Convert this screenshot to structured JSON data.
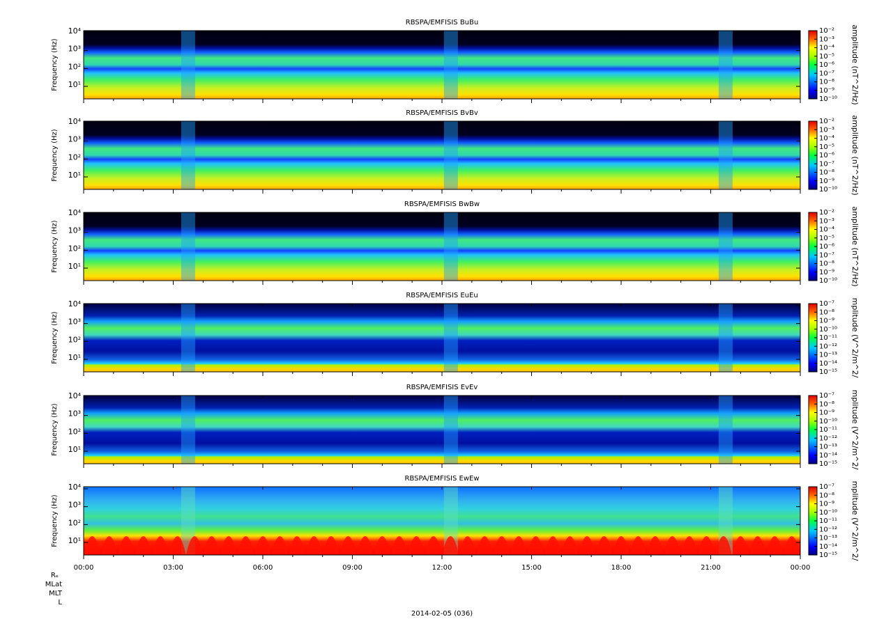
{
  "chart_data": [
    {
      "type": "spectrogram",
      "title": "RBSPA/EMFISIS  BuBu",
      "ylabel": "Frequency (Hz)",
      "yscale": "log",
      "ylim": [
        2,
        13000
      ],
      "yticks": [
        {
          "value": 10,
          "label": "10¹"
        },
        {
          "value": 100,
          "label": "10²"
        },
        {
          "value": 1000,
          "label": "10³"
        },
        {
          "value": 10000,
          "label": "10⁴"
        }
      ],
      "xlim": [
        0,
        24
      ],
      "xticks": [
        0,
        3,
        6,
        9,
        12,
        15,
        18,
        21,
        24
      ],
      "colorbar_label": "amplitude (nT^2/Hz)",
      "clim": [
        1e-10,
        0.01
      ],
      "cticks": [
        {
          "value": 1e-10,
          "label": "10⁻¹⁰"
        },
        {
          "value": 1e-09,
          "label": "10⁻⁹"
        },
        {
          "value": 1e-08,
          "label": "10⁻⁸"
        },
        {
          "value": 1e-07,
          "label": "10⁻⁷"
        },
        {
          "value": 1e-06,
          "label": "10⁻⁶"
        },
        {
          "value": 1e-05,
          "label": "10⁻⁵"
        },
        {
          "value": 0.0001,
          "label": "10⁻⁴"
        },
        {
          "value": 0.001,
          "label": "10⁻³"
        },
        {
          "value": 0.01,
          "label": "10⁻²"
        }
      ]
    },
    {
      "type": "spectrogram",
      "title": "RBSPA/EMFISIS  BvBv",
      "ylabel": "Frequency (Hz)",
      "yscale": "log",
      "ylim": [
        2,
        13000
      ],
      "yticks": [
        {
          "value": 10,
          "label": "10¹"
        },
        {
          "value": 100,
          "label": "10²"
        },
        {
          "value": 1000,
          "label": "10³"
        },
        {
          "value": 10000,
          "label": "10⁴"
        }
      ],
      "xlim": [
        0,
        24
      ],
      "xticks": [
        0,
        3,
        6,
        9,
        12,
        15,
        18,
        21,
        24
      ],
      "colorbar_label": "amplitude (nT^2/Hz)",
      "clim": [
        1e-10,
        0.01
      ],
      "cticks": [
        {
          "value": 1e-10,
          "label": "10⁻¹⁰"
        },
        {
          "value": 1e-09,
          "label": "10⁻⁹"
        },
        {
          "value": 1e-08,
          "label": "10⁻⁸"
        },
        {
          "value": 1e-07,
          "label": "10⁻⁷"
        },
        {
          "value": 1e-06,
          "label": "10⁻⁶"
        },
        {
          "value": 1e-05,
          "label": "10⁻⁵"
        },
        {
          "value": 0.0001,
          "label": "10⁻⁴"
        },
        {
          "value": 0.001,
          "label": "10⁻³"
        },
        {
          "value": 0.01,
          "label": "10⁻²"
        }
      ]
    },
    {
      "type": "spectrogram",
      "title": "RBSPA/EMFISIS  BwBw",
      "ylabel": "Frequency (Hz)",
      "yscale": "log",
      "ylim": [
        2,
        13000
      ],
      "yticks": [
        {
          "value": 10,
          "label": "10¹"
        },
        {
          "value": 100,
          "label": "10²"
        },
        {
          "value": 1000,
          "label": "10³"
        },
        {
          "value": 10000,
          "label": "10⁴"
        }
      ],
      "xlim": [
        0,
        24
      ],
      "xticks": [
        0,
        3,
        6,
        9,
        12,
        15,
        18,
        21,
        24
      ],
      "colorbar_label": "amplitude (nT^2/Hz)",
      "clim": [
        1e-10,
        0.01
      ],
      "cticks": [
        {
          "value": 1e-10,
          "label": "10⁻¹⁰"
        },
        {
          "value": 1e-09,
          "label": "10⁻⁹"
        },
        {
          "value": 1e-08,
          "label": "10⁻⁸"
        },
        {
          "value": 1e-07,
          "label": "10⁻⁷"
        },
        {
          "value": 1e-06,
          "label": "10⁻⁶"
        },
        {
          "value": 1e-05,
          "label": "10⁻⁵"
        },
        {
          "value": 0.0001,
          "label": "10⁻⁴"
        },
        {
          "value": 0.001,
          "label": "10⁻³"
        },
        {
          "value": 0.01,
          "label": "10⁻²"
        }
      ]
    },
    {
      "type": "spectrogram",
      "title": "RBSPA/EMFISIS  EuEu",
      "ylabel": "Frequency (Hz)",
      "yscale": "log",
      "ylim": [
        2,
        13000
      ],
      "yticks": [
        {
          "value": 10,
          "label": "10¹"
        },
        {
          "value": 100,
          "label": "10²"
        },
        {
          "value": 1000,
          "label": "10³"
        },
        {
          "value": 10000,
          "label": "10⁴"
        }
      ],
      "xlim": [
        0,
        24
      ],
      "xticks": [
        0,
        3,
        6,
        9,
        12,
        15,
        18,
        21,
        24
      ],
      "colorbar_label": "mplitude (V^2/m^2/",
      "clim": [
        1e-15,
        1e-07
      ],
      "cticks": [
        {
          "value": 1e-15,
          "label": "10⁻¹⁵"
        },
        {
          "value": 1e-14,
          "label": "10⁻¹⁴"
        },
        {
          "value": 1e-13,
          "label": "10⁻¹³"
        },
        {
          "value": 1e-12,
          "label": "10⁻¹²"
        },
        {
          "value": 1e-11,
          "label": "10⁻¹¹"
        },
        {
          "value": 1e-10,
          "label": "10⁻¹⁰"
        },
        {
          "value": 1e-09,
          "label": "10⁻⁹"
        },
        {
          "value": 1e-08,
          "label": "10⁻⁸"
        },
        {
          "value": 1e-07,
          "label": "10⁻⁷"
        }
      ]
    },
    {
      "type": "spectrogram",
      "title": "RBSPA/EMFISIS  EvEv",
      "ylabel": "Frequency (Hz)",
      "yscale": "log",
      "ylim": [
        2,
        13000
      ],
      "yticks": [
        {
          "value": 10,
          "label": "10¹"
        },
        {
          "value": 100,
          "label": "10²"
        },
        {
          "value": 1000,
          "label": "10³"
        },
        {
          "value": 10000,
          "label": "10⁴"
        }
      ],
      "xlim": [
        0,
        24
      ],
      "xticks": [
        0,
        3,
        6,
        9,
        12,
        15,
        18,
        21,
        24
      ],
      "colorbar_label": "mplitude (V^2/m^2/",
      "clim": [
        1e-15,
        1e-07
      ],
      "cticks": [
        {
          "value": 1e-15,
          "label": "10⁻¹⁵"
        },
        {
          "value": 1e-14,
          "label": "10⁻¹⁴"
        },
        {
          "value": 1e-13,
          "label": "10⁻¹³"
        },
        {
          "value": 1e-12,
          "label": "10⁻¹²"
        },
        {
          "value": 1e-11,
          "label": "10⁻¹¹"
        },
        {
          "value": 1e-10,
          "label": "10⁻¹⁰"
        },
        {
          "value": 1e-09,
          "label": "10⁻⁹"
        },
        {
          "value": 1e-08,
          "label": "10⁻⁸"
        },
        {
          "value": 1e-07,
          "label": "10⁻⁷"
        }
      ]
    },
    {
      "type": "spectrogram",
      "title": "RBSPA/EMFISIS  EwEw",
      "ylabel": "Frequency (Hz)",
      "yscale": "log",
      "ylim": [
        2,
        13000
      ],
      "yticks": [
        {
          "value": 10,
          "label": "10¹"
        },
        {
          "value": 100,
          "label": "10²"
        },
        {
          "value": 1000,
          "label": "10³"
        },
        {
          "value": 10000,
          "label": "10⁴"
        }
      ],
      "xlim": [
        0,
        24
      ],
      "xticks": [
        {
          "value": 0,
          "label": "00:00"
        },
        {
          "value": 3,
          "label": "03:00"
        },
        {
          "value": 6,
          "label": "06:00"
        },
        {
          "value": 9,
          "label": "09:00"
        },
        {
          "value": 12,
          "label": "12:00"
        },
        {
          "value": 15,
          "label": "15:00"
        },
        {
          "value": 18,
          "label": "18:00"
        },
        {
          "value": 21,
          "label": "21:00"
        },
        {
          "value": 24,
          "label": "00:00"
        }
      ],
      "colorbar_label": "mplitude (V^2/m^2/",
      "clim": [
        1e-15,
        1e-07
      ],
      "cticks": [
        {
          "value": 1e-15,
          "label": "10⁻¹⁵"
        },
        {
          "value": 1e-14,
          "label": "10⁻¹⁴"
        },
        {
          "value": 1e-13,
          "label": "10⁻¹³"
        },
        {
          "value": 1e-12,
          "label": "10⁻¹²"
        },
        {
          "value": 1e-11,
          "label": "10⁻¹¹"
        },
        {
          "value": 1e-10,
          "label": "10⁻¹⁰"
        },
        {
          "value": 1e-09,
          "label": "10⁻⁹"
        },
        {
          "value": 1e-08,
          "label": "10⁻⁸"
        },
        {
          "value": 1e-07,
          "label": "10⁻⁷"
        }
      ]
    }
  ],
  "footer": {
    "ephemeris": [
      "Rₑ",
      "MLat",
      "MLT",
      "L"
    ],
    "date": "2014-02-05 (036)"
  }
}
